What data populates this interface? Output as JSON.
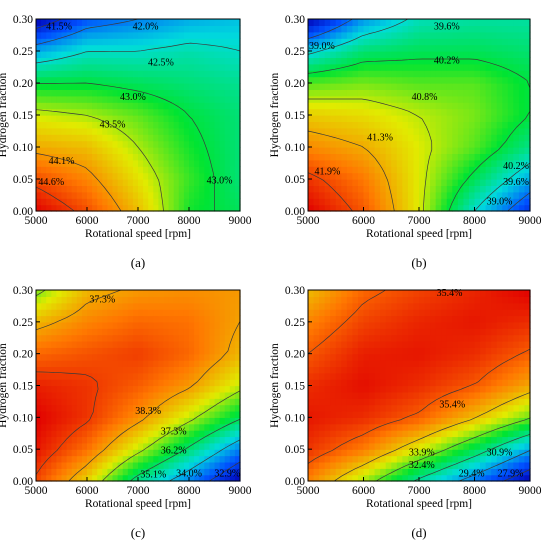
{
  "chart_data": [
    {
      "type": "heatmap",
      "panel_label": "(a)",
      "xlabel": "Rotational speed [rpm]",
      "ylabel": "Hydrogen fraction",
      "xlim": [
        5000,
        9000
      ],
      "ylim": [
        0.0,
        0.3
      ],
      "xticks": [
        "5000",
        "6000",
        "7000",
        "8000",
        "9000"
      ],
      "yticks": [
        "0.00",
        "0.05",
        "0.10",
        "0.15",
        "0.20",
        "0.25",
        "0.30"
      ],
      "colormap": "jet",
      "clim": [
        41.2,
        44.9
      ],
      "x": [
        5000,
        6000,
        7000,
        8000,
        9000
      ],
      "y": [
        0.0,
        0.05,
        0.1,
        0.15,
        0.2,
        0.25,
        0.3
      ],
      "z": [
        [
          44.9,
          44.5,
          43.9,
          43.1,
          42.9
        ],
        [
          44.5,
          44.2,
          43.7,
          43.2,
          42.8
        ],
        [
          44.0,
          43.9,
          43.5,
          43.1,
          42.8
        ],
        [
          43.6,
          43.5,
          43.3,
          43.0,
          42.8
        ],
        [
          43.0,
          43.0,
          42.9,
          42.8,
          42.7
        ],
        [
          42.2,
          42.5,
          42.5,
          42.6,
          42.5
        ],
        [
          41.2,
          41.8,
          42.0,
          42.2,
          42.3
        ]
      ],
      "contour_labels": [
        {
          "text": "41.5%",
          "x": 5450,
          "y": 0.288
        },
        {
          "text": "42.0%",
          "x": 7150,
          "y": 0.288
        },
        {
          "text": "42.5%",
          "x": 7450,
          "y": 0.232
        },
        {
          "text": "43.0%",
          "x": 6900,
          "y": 0.178
        },
        {
          "text": "43.5%",
          "x": 6500,
          "y": 0.135
        },
        {
          "text": "44.1%",
          "x": 5500,
          "y": 0.078
        },
        {
          "text": "44.6%",
          "x": 5300,
          "y": 0.045
        },
        {
          "text": "43.0%",
          "x": 8600,
          "y": 0.048
        }
      ]
    },
    {
      "type": "heatmap",
      "panel_label": "(b)",
      "xlabel": "Rotational speed [rpm]",
      "ylabel": "Hydrogen fraction",
      "xlim": [
        5000,
        9000
      ],
      "ylim": [
        0.0,
        0.3
      ],
      "xticks": [
        "5000",
        "6000",
        "7000",
        "8000",
        "9000"
      ],
      "yticks": [
        "0.00",
        "0.05",
        "0.10",
        "0.15",
        "0.20",
        "0.25",
        "0.30"
      ],
      "colormap": "jet",
      "clim": [
        38.2,
        42.3
      ],
      "x": [
        5000,
        6000,
        7000,
        8000,
        9000
      ],
      "y": [
        0.0,
        0.05,
        0.1,
        0.15,
        0.2,
        0.25,
        0.3
      ],
      "z": [
        [
          42.3,
          41.8,
          40.9,
          39.6,
          38.6
        ],
        [
          42.0,
          41.6,
          40.9,
          40.1,
          39.3
        ],
        [
          41.5,
          41.3,
          40.9,
          40.5,
          39.9
        ],
        [
          41.1,
          41.0,
          40.8,
          40.6,
          40.2
        ],
        [
          40.5,
          40.6,
          40.5,
          40.5,
          40.2
        ],
        [
          39.5,
          40.0,
          40.1,
          40.1,
          40.0
        ],
        [
          38.2,
          39.2,
          39.7,
          39.8,
          39.8
        ]
      ],
      "contour_labels": [
        {
          "text": "39.0%",
          "x": 5250,
          "y": 0.258
        },
        {
          "text": "39.6%",
          "x": 7500,
          "y": 0.288
        },
        {
          "text": "40.2%",
          "x": 7500,
          "y": 0.235
        },
        {
          "text": "40.8%",
          "x": 7100,
          "y": 0.178
        },
        {
          "text": "41.3%",
          "x": 6300,
          "y": 0.115
        },
        {
          "text": "41.9%",
          "x": 5350,
          "y": 0.062
        },
        {
          "text": "40.2%",
          "x": 8750,
          "y": 0.07
        },
        {
          "text": "39.6%",
          "x": 8750,
          "y": 0.045
        },
        {
          "text": "39.0%",
          "x": 8450,
          "y": 0.015
        }
      ]
    },
    {
      "type": "heatmap",
      "panel_label": "(c)",
      "xlabel": "Rotational speed [rpm]",
      "ylabel": "Hydrogen fraction",
      "xlim": [
        5000,
        9000
      ],
      "ylim": [
        0.0,
        0.3
      ],
      "xticks": [
        "5000",
        "6000",
        "7000",
        "8000",
        "9000"
      ],
      "yticks": [
        "0.00",
        "0.05",
        "0.10",
        "0.15",
        "0.20",
        "0.25",
        "0.30"
      ],
      "colormap": "jet",
      "clim": [
        32.0,
        38.9
      ],
      "x": [
        5000,
        6000,
        7000,
        8000,
        9000
      ],
      "y": [
        0.0,
        0.05,
        0.1,
        0.15,
        0.2,
        0.25,
        0.3
      ],
      "z": [
        [
          38.2,
          36.8,
          34.8,
          33.5,
          32.0
        ],
        [
          38.7,
          37.8,
          36.4,
          35.0,
          33.5
        ],
        [
          38.9,
          38.4,
          37.5,
          36.4,
          35.2
        ],
        [
          38.6,
          38.4,
          38.0,
          37.4,
          36.4
        ],
        [
          37.9,
          38.1,
          38.3,
          37.9,
          37.1
        ],
        [
          37.1,
          37.6,
          37.9,
          37.8,
          37.3
        ],
        [
          36.0,
          37.1,
          37.4,
          37.5,
          37.4
        ]
      ],
      "contour_labels": [
        {
          "text": "37.3%",
          "x": 6300,
          "y": 0.285
        },
        {
          "text": "38.3%",
          "x": 7200,
          "y": 0.11
        },
        {
          "text": "37.3%",
          "x": 7700,
          "y": 0.078
        },
        {
          "text": "36.2%",
          "x": 7700,
          "y": 0.048
        },
        {
          "text": "35.1%",
          "x": 7300,
          "y": 0.01
        },
        {
          "text": "34.0%",
          "x": 8000,
          "y": 0.012
        },
        {
          "text": "32.9%",
          "x": 8750,
          "y": 0.012
        }
      ]
    },
    {
      "type": "heatmap",
      "panel_label": "(d)",
      "xlabel": "Rotational speed [rpm]",
      "ylabel": "Hydrogen fraction",
      "xlim": [
        5000,
        9000
      ],
      "ylim": [
        0.0,
        0.3
      ],
      "xticks": [
        "5000",
        "6000",
        "7000",
        "8000",
        "9000"
      ],
      "yticks": [
        "0.00",
        "0.05",
        "0.10",
        "0.15",
        "0.20",
        "0.25",
        "0.30"
      ],
      "colormap": "jet",
      "clim": [
        27.0,
        36.6
      ],
      "x": [
        5000,
        6000,
        7000,
        8000,
        9000
      ],
      "y": [
        0.0,
        0.05,
        0.1,
        0.15,
        0.2,
        0.25,
        0.3
      ],
      "z": [
        [
          34.8,
          32.9,
          30.7,
          28.9,
          27.0
        ],
        [
          35.9,
          34.9,
          33.3,
          31.5,
          29.5
        ],
        [
          36.3,
          36.0,
          35.3,
          34.0,
          32.5
        ],
        [
          36.0,
          36.4,
          36.0,
          35.4,
          34.3
        ],
        [
          35.4,
          36.2,
          36.3,
          36.0,
          35.3
        ],
        [
          34.8,
          35.7,
          36.1,
          36.3,
          36.0
        ],
        [
          34.0,
          35.2,
          35.7,
          36.1,
          36.6
        ]
      ],
      "contour_labels": [
        {
          "text": "35.4%",
          "x": 7550,
          "y": 0.295
        },
        {
          "text": "35.4%",
          "x": 7600,
          "y": 0.12
        },
        {
          "text": "33.9%",
          "x": 7050,
          "y": 0.045
        },
        {
          "text": "32.4%",
          "x": 7050,
          "y": 0.025
        },
        {
          "text": "30.9%",
          "x": 8450,
          "y": 0.045
        },
        {
          "text": "29.4%",
          "x": 7950,
          "y": 0.012
        },
        {
          "text": "27.9%",
          "x": 8650,
          "y": 0.012
        }
      ]
    }
  ]
}
